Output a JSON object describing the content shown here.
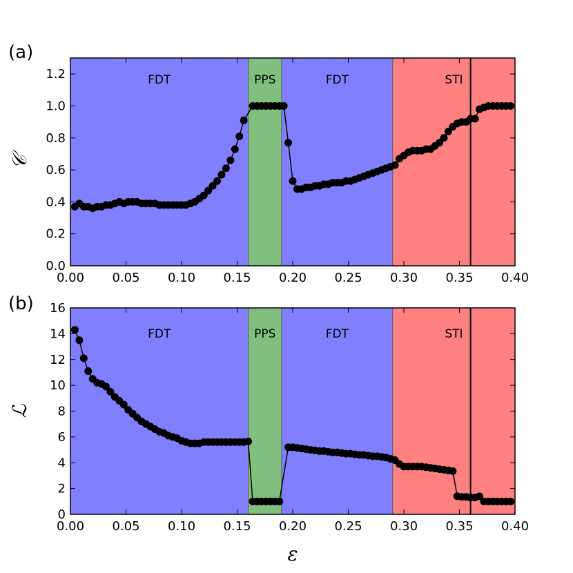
{
  "chart_data": [
    {
      "type": "line",
      "panel_label": "(a)",
      "ylabel": "𝒞",
      "xlabel": "",
      "xlim": [
        0.0,
        0.4
      ],
      "ylim": [
        0.0,
        1.3
      ],
      "xticks": [
        "0.00",
        "0.05",
        "0.10",
        "0.15",
        "0.20",
        "0.25",
        "0.30",
        "0.35",
        "0.40"
      ],
      "yticks": [
        "0.0",
        "0.2",
        "0.4",
        "0.6",
        "0.8",
        "1.0",
        "1.2"
      ],
      "regions": [
        {
          "label": "FDT",
          "x0": 0.0,
          "x1": 0.16,
          "color": "#8080ff"
        },
        {
          "label": "PPS",
          "x0": 0.16,
          "x1": 0.19,
          "color": "#80bf80"
        },
        {
          "label": "FDT",
          "x0": 0.19,
          "x1": 0.29,
          "color": "#8080ff"
        },
        {
          "label": "STI",
          "x0": 0.29,
          "x1": 0.4,
          "color": "#ff8080"
        }
      ],
      "vline": 0.36,
      "series": [
        {
          "x": [
            0.004,
            0.008,
            0.012,
            0.016,
            0.02,
            0.024,
            0.028,
            0.032,
            0.036,
            0.04,
            0.044,
            0.048,
            0.052,
            0.056,
            0.06,
            0.064,
            0.068,
            0.072,
            0.076,
            0.08,
            0.084,
            0.088,
            0.092,
            0.096,
            0.1,
            0.104,
            0.108,
            0.112,
            0.116,
            0.12,
            0.124,
            0.128,
            0.132,
            0.136,
            0.14,
            0.144,
            0.148,
            0.152,
            0.156,
            0.164,
            0.168,
            0.172,
            0.176,
            0.18,
            0.184,
            0.188,
            0.192,
            0.196,
            0.2,
            0.204,
            0.208,
            0.212,
            0.216,
            0.22,
            0.224,
            0.228,
            0.232,
            0.236,
            0.24,
            0.244,
            0.248,
            0.252,
            0.256,
            0.26,
            0.264,
            0.268,
            0.272,
            0.276,
            0.28,
            0.284,
            0.288,
            0.292,
            0.296,
            0.3,
            0.304,
            0.308,
            0.312,
            0.316,
            0.32,
            0.324,
            0.328,
            0.332,
            0.336,
            0.34,
            0.344,
            0.348,
            0.352,
            0.356,
            0.36,
            0.364,
            0.368,
            0.372,
            0.376,
            0.38,
            0.384,
            0.388,
            0.392,
            0.396
          ],
          "values": [
            0.37,
            0.39,
            0.37,
            0.37,
            0.36,
            0.37,
            0.37,
            0.38,
            0.38,
            0.39,
            0.4,
            0.39,
            0.4,
            0.4,
            0.4,
            0.39,
            0.39,
            0.39,
            0.39,
            0.38,
            0.38,
            0.38,
            0.38,
            0.38,
            0.38,
            0.38,
            0.39,
            0.4,
            0.42,
            0.44,
            0.47,
            0.5,
            0.53,
            0.57,
            0.61,
            0.66,
            0.73,
            0.81,
            0.91,
            1.0,
            1.0,
            1.0,
            1.0,
            1.0,
            1.0,
            1.0,
            1.0,
            0.77,
            0.53,
            0.48,
            0.48,
            0.49,
            0.49,
            0.5,
            0.5,
            0.51,
            0.51,
            0.52,
            0.52,
            0.52,
            0.53,
            0.53,
            0.54,
            0.55,
            0.56,
            0.57,
            0.58,
            0.59,
            0.6,
            0.61,
            0.62,
            0.63,
            0.67,
            0.69,
            0.71,
            0.72,
            0.72,
            0.72,
            0.73,
            0.73,
            0.75,
            0.77,
            0.8,
            0.84,
            0.87,
            0.89,
            0.9,
            0.9,
            0.92,
            0.92,
            0.98,
            0.99,
            1.0,
            1.0,
            1.0,
            1.0,
            1.0,
            1.0
          ]
        }
      ]
    },
    {
      "type": "line",
      "panel_label": "(b)",
      "ylabel": "ℒ",
      "xlabel": "ε",
      "xlim": [
        0.0,
        0.4
      ],
      "ylim": [
        0,
        16
      ],
      "xticks": [
        "0.00",
        "0.05",
        "0.10",
        "0.15",
        "0.20",
        "0.25",
        "0.30",
        "0.35",
        "0.40"
      ],
      "yticks": [
        "0",
        "2",
        "4",
        "6",
        "8",
        "10",
        "12",
        "14",
        "16"
      ],
      "regions": [
        {
          "label": "FDT",
          "x0": 0.0,
          "x1": 0.16,
          "color": "#8080ff"
        },
        {
          "label": "PPS",
          "x0": 0.16,
          "x1": 0.19,
          "color": "#80bf80"
        },
        {
          "label": "FDT",
          "x0": 0.19,
          "x1": 0.29,
          "color": "#8080ff"
        },
        {
          "label": "STI",
          "x0": 0.29,
          "x1": 0.4,
          "color": "#ff8080"
        }
      ],
      "vline": 0.36,
      "series": [
        {
          "x": [
            0.004,
            0.008,
            0.012,
            0.016,
            0.02,
            0.024,
            0.028,
            0.032,
            0.036,
            0.04,
            0.044,
            0.048,
            0.052,
            0.056,
            0.06,
            0.064,
            0.068,
            0.072,
            0.076,
            0.08,
            0.084,
            0.088,
            0.092,
            0.096,
            0.1,
            0.104,
            0.108,
            0.112,
            0.116,
            0.12,
            0.124,
            0.128,
            0.132,
            0.136,
            0.14,
            0.144,
            0.148,
            0.152,
            0.156,
            0.16,
            0.164,
            0.168,
            0.172,
            0.176,
            0.18,
            0.184,
            0.188,
            0.196,
            0.2,
            0.204,
            0.208,
            0.212,
            0.216,
            0.22,
            0.224,
            0.228,
            0.232,
            0.236,
            0.24,
            0.244,
            0.248,
            0.252,
            0.256,
            0.26,
            0.264,
            0.268,
            0.272,
            0.276,
            0.28,
            0.284,
            0.288,
            0.292,
            0.296,
            0.3,
            0.304,
            0.308,
            0.312,
            0.316,
            0.32,
            0.324,
            0.328,
            0.332,
            0.336,
            0.34,
            0.344,
            0.348,
            0.352,
            0.356,
            0.36,
            0.364,
            0.368,
            0.372,
            0.376,
            0.38,
            0.384,
            0.388,
            0.392,
            0.396
          ],
          "values": [
            14.3,
            13.5,
            12.1,
            11.1,
            10.5,
            10.2,
            10.1,
            9.9,
            9.5,
            9.1,
            8.8,
            8.5,
            8.1,
            7.8,
            7.5,
            7.2,
            7.0,
            6.8,
            6.6,
            6.4,
            6.3,
            6.1,
            6.0,
            5.9,
            5.7,
            5.6,
            5.5,
            5.5,
            5.5,
            5.6,
            5.6,
            5.6,
            5.6,
            5.6,
            5.6,
            5.6,
            5.6,
            5.6,
            5.6,
            5.65,
            1.0,
            1.0,
            1.0,
            1.0,
            1.0,
            1.0,
            1.0,
            5.2,
            5.2,
            5.15,
            5.1,
            5.05,
            5.0,
            4.95,
            4.9,
            4.9,
            4.85,
            4.8,
            4.8,
            4.75,
            4.7,
            4.7,
            4.65,
            4.6,
            4.6,
            4.55,
            4.5,
            4.5,
            4.45,
            4.4,
            4.3,
            4.2,
            3.9,
            3.7,
            3.7,
            3.7,
            3.7,
            3.7,
            3.65,
            3.6,
            3.55,
            3.5,
            3.45,
            3.4,
            3.35,
            1.4,
            1.35,
            1.35,
            1.3,
            1.3,
            1.4,
            1.0,
            1.0,
            1.0,
            1.0,
            1.0,
            1.0,
            1.0
          ]
        }
      ]
    }
  ]
}
